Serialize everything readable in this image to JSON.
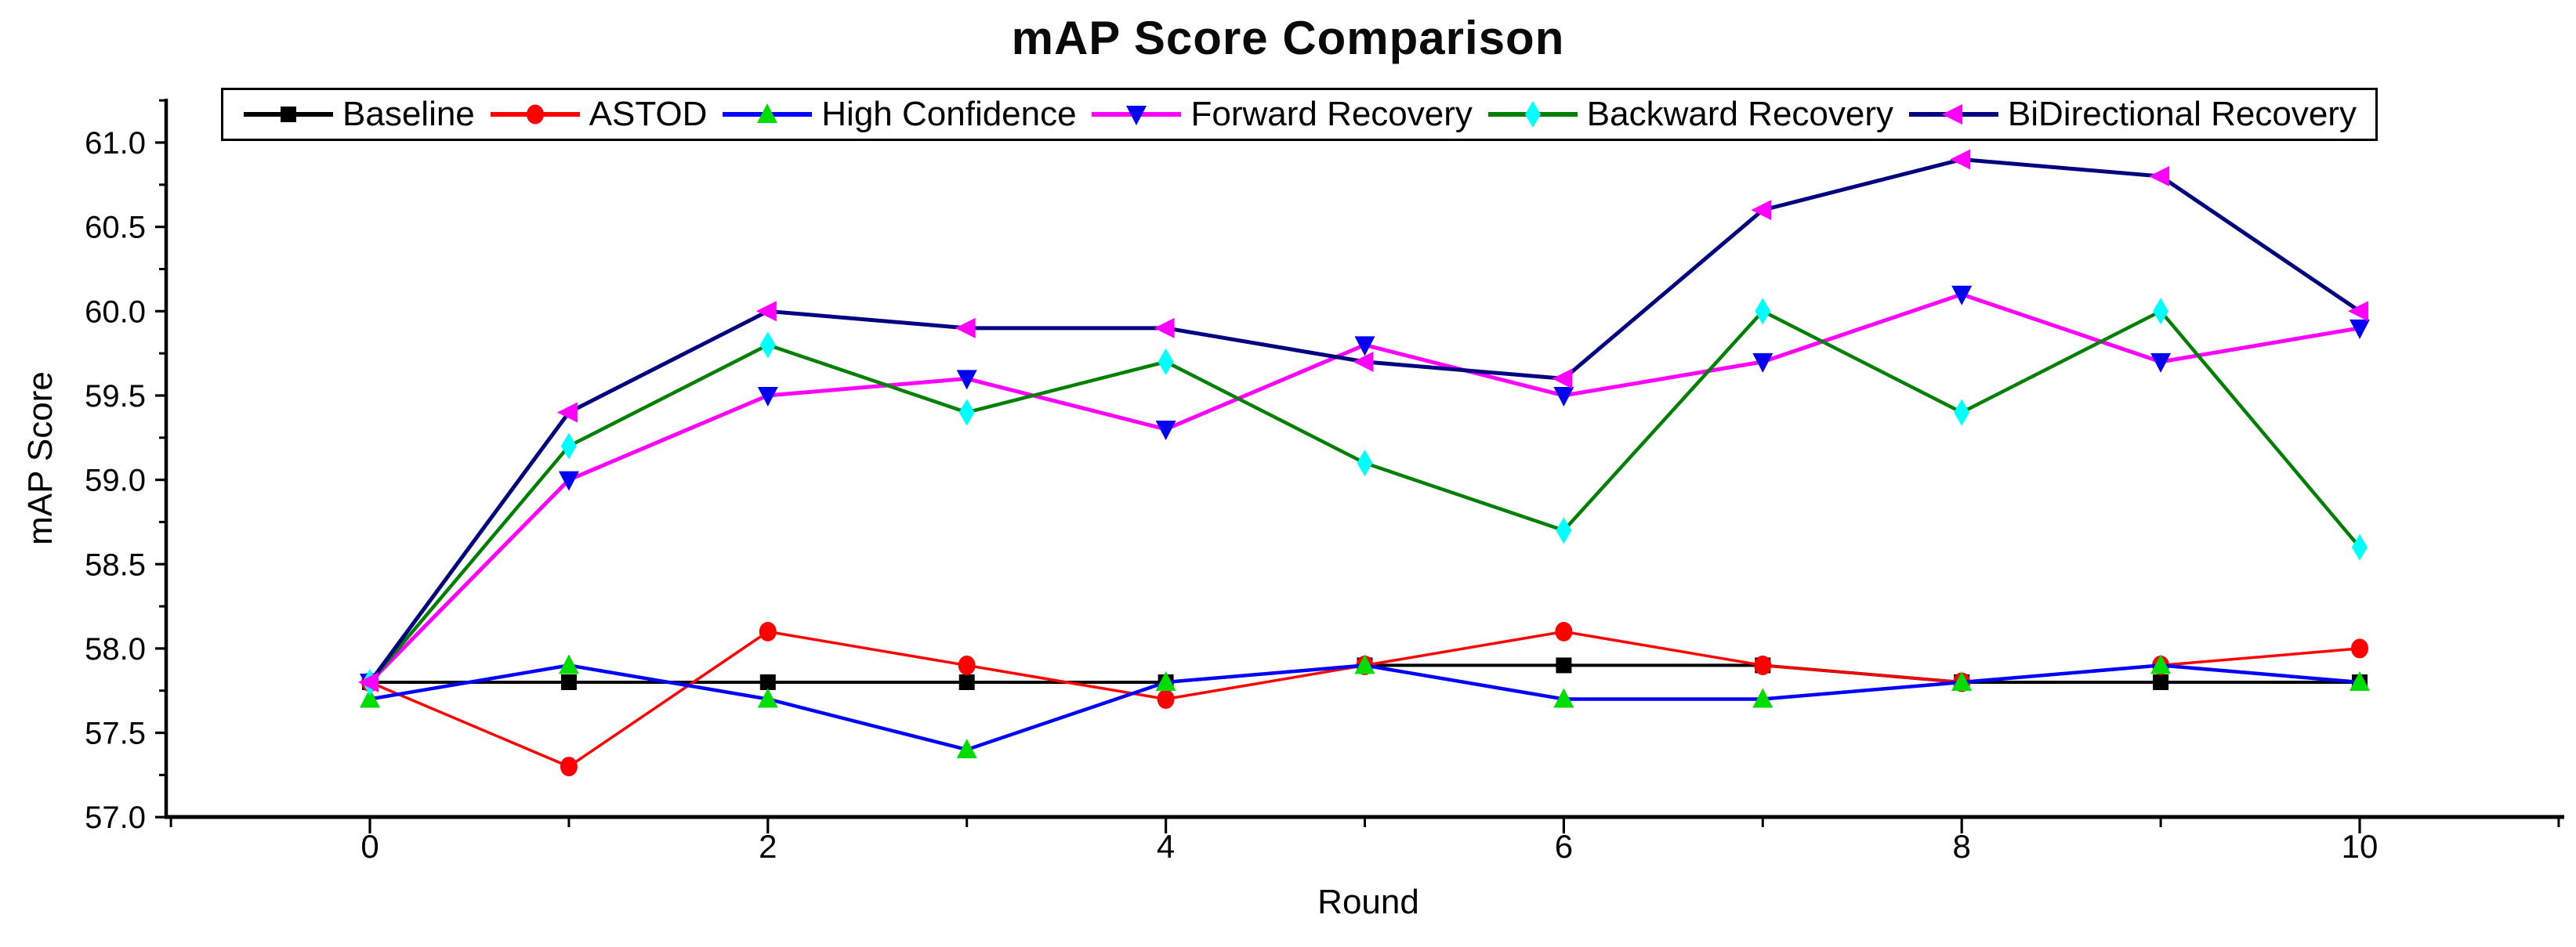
{
  "title": "mAP Score Comparison",
  "chart_data": {
    "type": "line",
    "title": "mAP Score Comparison",
    "xlabel": "Round",
    "ylabel": "mAP Score",
    "grid": false,
    "legend_position": "top-horizontal",
    "background_color": "#ffffff",
    "axis_color": "#000000",
    "xlim": [
      -1.02,
      11.02
    ],
    "ylim": [
      57.0,
      61.27
    ],
    "x_major_ticks": [
      0,
      2,
      4,
      6,
      8,
      10
    ],
    "x_minor_ticks": [
      -1,
      1,
      3,
      5,
      7,
      9,
      11
    ],
    "y_major_ticks": [
      57.0,
      57.5,
      58.0,
      58.5,
      59.0,
      59.5,
      60.0,
      60.5,
      61.0
    ],
    "y_minor_ticks": [
      57.25,
      57.75,
      58.25,
      58.75,
      59.25,
      59.75,
      60.25,
      60.75,
      61.25
    ],
    "y_tick_labels": [
      "57.0",
      "57.5",
      "58.0",
      "58.5",
      "59.0",
      "59.5",
      "60.0",
      "60.5",
      "61.0"
    ],
    "x_tick_labels": [
      "0",
      "2",
      "4",
      "6",
      "8",
      "10"
    ],
    "x": [
      0,
      1,
      2,
      3,
      4,
      5,
      6,
      7,
      8,
      9,
      10
    ],
    "series": [
      {
        "name": "Baseline",
        "slug": "baseline",
        "line_color": "#000000",
        "line_width": 4,
        "marker": "square",
        "marker_color": "#000000",
        "values": [
          57.8,
          57.8,
          57.8,
          57.8,
          57.8,
          57.9,
          57.9,
          57.9,
          57.8,
          57.8,
          57.8
        ]
      },
      {
        "name": "ASTOD",
        "slug": "astod",
        "line_color": "#ff0000",
        "line_width": 3.5,
        "marker": "circle",
        "marker_color": "#ff0000",
        "values": [
          57.8,
          57.3,
          58.1,
          57.9,
          57.7,
          57.9,
          58.1,
          57.9,
          57.8,
          57.9,
          58.0
        ]
      },
      {
        "name": "High Confidence",
        "slug": "high-confidence",
        "line_color": "#0000ff",
        "line_width": 4.5,
        "marker": "triangle-up",
        "marker_color": "#00dd00",
        "values": [
          57.7,
          57.9,
          57.7,
          57.4,
          57.8,
          57.9,
          57.7,
          57.7,
          57.8,
          57.9,
          57.8
        ]
      },
      {
        "name": "Forward Recovery",
        "slug": "forward-recovery",
        "line_color": "#ff00ff",
        "line_width": 5,
        "marker": "triangle-down",
        "marker_color": "#0000f0",
        "values": [
          57.8,
          59.0,
          59.5,
          59.6,
          59.3,
          59.8,
          59.5,
          59.7,
          60.1,
          59.7,
          59.9
        ]
      },
      {
        "name": "Backward Recovery",
        "slug": "backward-recovery",
        "line_color": "#008000",
        "line_width": 4.5,
        "marker": "diamond",
        "marker_color": "#00ffff",
        "values": [
          57.8,
          59.2,
          59.8,
          59.4,
          59.7,
          59.1,
          58.7,
          60.0,
          59.4,
          60.0,
          58.6
        ]
      },
      {
        "name": "BiDirectional Recovery",
        "slug": "bidirectional-recovery",
        "line_color": "#000080",
        "line_width": 5,
        "marker": "triangle-left",
        "marker_color": "#ff00ff",
        "values": [
          57.8,
          59.4,
          60.0,
          59.9,
          59.9,
          59.7,
          59.6,
          60.6,
          60.9,
          60.8,
          60.0
        ]
      }
    ]
  }
}
